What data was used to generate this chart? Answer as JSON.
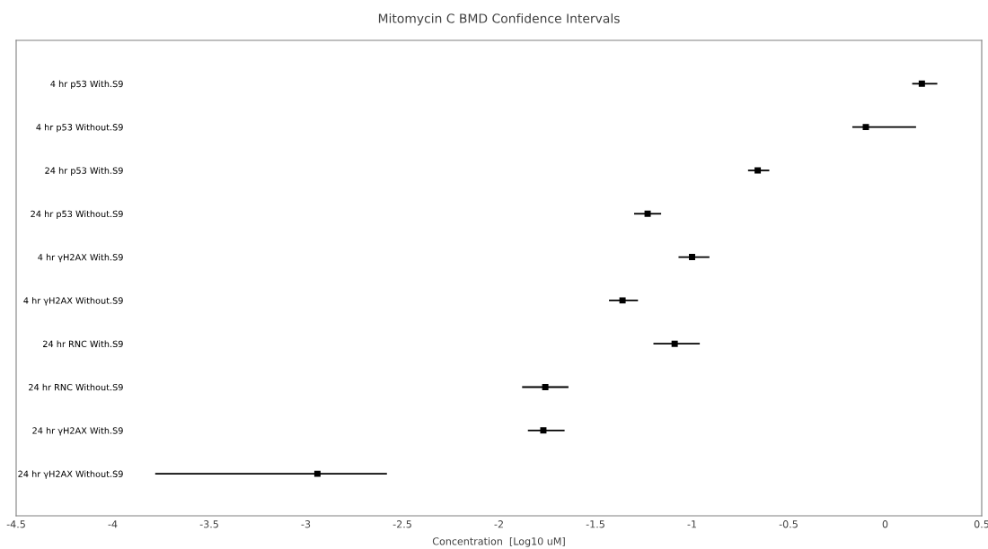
{
  "chart_data": {
    "type": "scatter",
    "title": "Mitomycin C BMD Confidence Intervals",
    "xlabel": "Concentration  [Log10 uM]",
    "orientation": "horizontal",
    "marker": "square",
    "grid": false,
    "legend": false,
    "categories": [
      "4 hr p53 With.S9",
      "4 hr p53 Without.S9",
      "24 hr p53 With.S9",
      "24 hr p53 Without.S9",
      "4 hr γH2AX With.S9",
      "4 hr γH2AX Without.S9",
      "24 hr RNC With.S9",
      "24 hr RNC Without.S9",
      "24 hr γH2AX With.S9",
      "24 hr γH2AX Without.S9"
    ],
    "series": [
      {
        "color": "#000000",
        "values": [
          0.19,
          -0.1,
          -0.66,
          -1.23,
          -1.0,
          -1.36,
          -1.09,
          -1.76,
          -1.77,
          -2.94
        ],
        "errors": [
          [
            0.14,
            0.27
          ],
          [
            -0.17,
            0.16
          ],
          [
            -0.71,
            -0.6
          ],
          [
            -1.3,
            -1.16
          ],
          [
            -1.07,
            -0.91
          ],
          [
            -1.43,
            -1.28
          ],
          [
            -1.2,
            -0.96
          ],
          [
            -1.88,
            -1.64
          ],
          [
            -1.85,
            -1.66
          ],
          [
            -3.78,
            -2.58
          ]
        ]
      }
    ],
    "xlim": [
      -4.5,
      0.5
    ],
    "xticks": [
      -4.5,
      -4,
      -3.5,
      -3,
      -2.5,
      -2,
      -1.5,
      -1,
      -0.5,
      0,
      0.5
    ]
  }
}
